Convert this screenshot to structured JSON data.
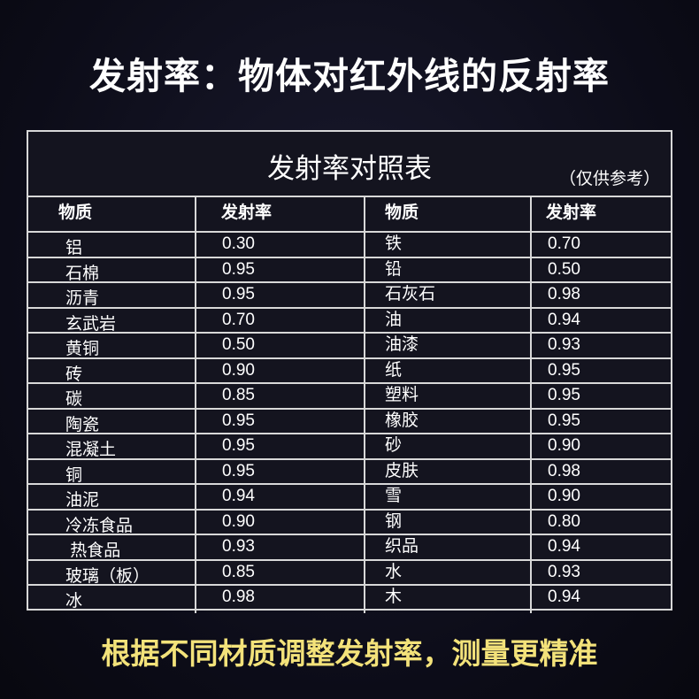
{
  "headline": "发射率：物体对红外线的反射率",
  "table": {
    "title": "发射率对照表",
    "note": "（仅供参考）",
    "headers": [
      "物质",
      "发射率",
      "物质",
      "发射率"
    ],
    "rows": [
      [
        "铝",
        "0.30",
        "铁",
        "0.70"
      ],
      [
        "石棉",
        "0.95",
        "铅",
        "0.50"
      ],
      [
        "沥青",
        "0.95",
        "石灰石",
        "0.98"
      ],
      [
        "玄武岩",
        "0.70",
        "油",
        "0.94"
      ],
      [
        "黄铜",
        "0.50",
        "油漆",
        "0.93"
      ],
      [
        "砖",
        "0.90",
        "纸",
        "0.95"
      ],
      [
        "碳",
        "0.85",
        "塑料",
        "0.95"
      ],
      [
        "陶瓷",
        "0.95",
        "橡胶",
        "0.95"
      ],
      [
        "混凝土",
        "0.95",
        "砂",
        "0.90"
      ],
      [
        "铜",
        "0.95",
        "皮肤",
        "0.98"
      ],
      [
        "油泥",
        "0.94",
        "雪",
        "0.90"
      ],
      [
        "冷冻食品",
        "0.90",
        "钢",
        "0.80"
      ],
      [
        " 热食品",
        "0.93",
        "织品",
        "0.94"
      ],
      [
        "玻璃（板）",
        "0.85",
        "水",
        "0.93"
      ],
      [
        "冰",
        "0.98",
        "木",
        "0.94"
      ]
    ]
  },
  "footer": "根据不同材质调整发射率，测量更精准",
  "colors": {
    "background": "#0c0c18",
    "footer_text": "#f3e27a",
    "grid_lines": "#d8d8d8"
  }
}
